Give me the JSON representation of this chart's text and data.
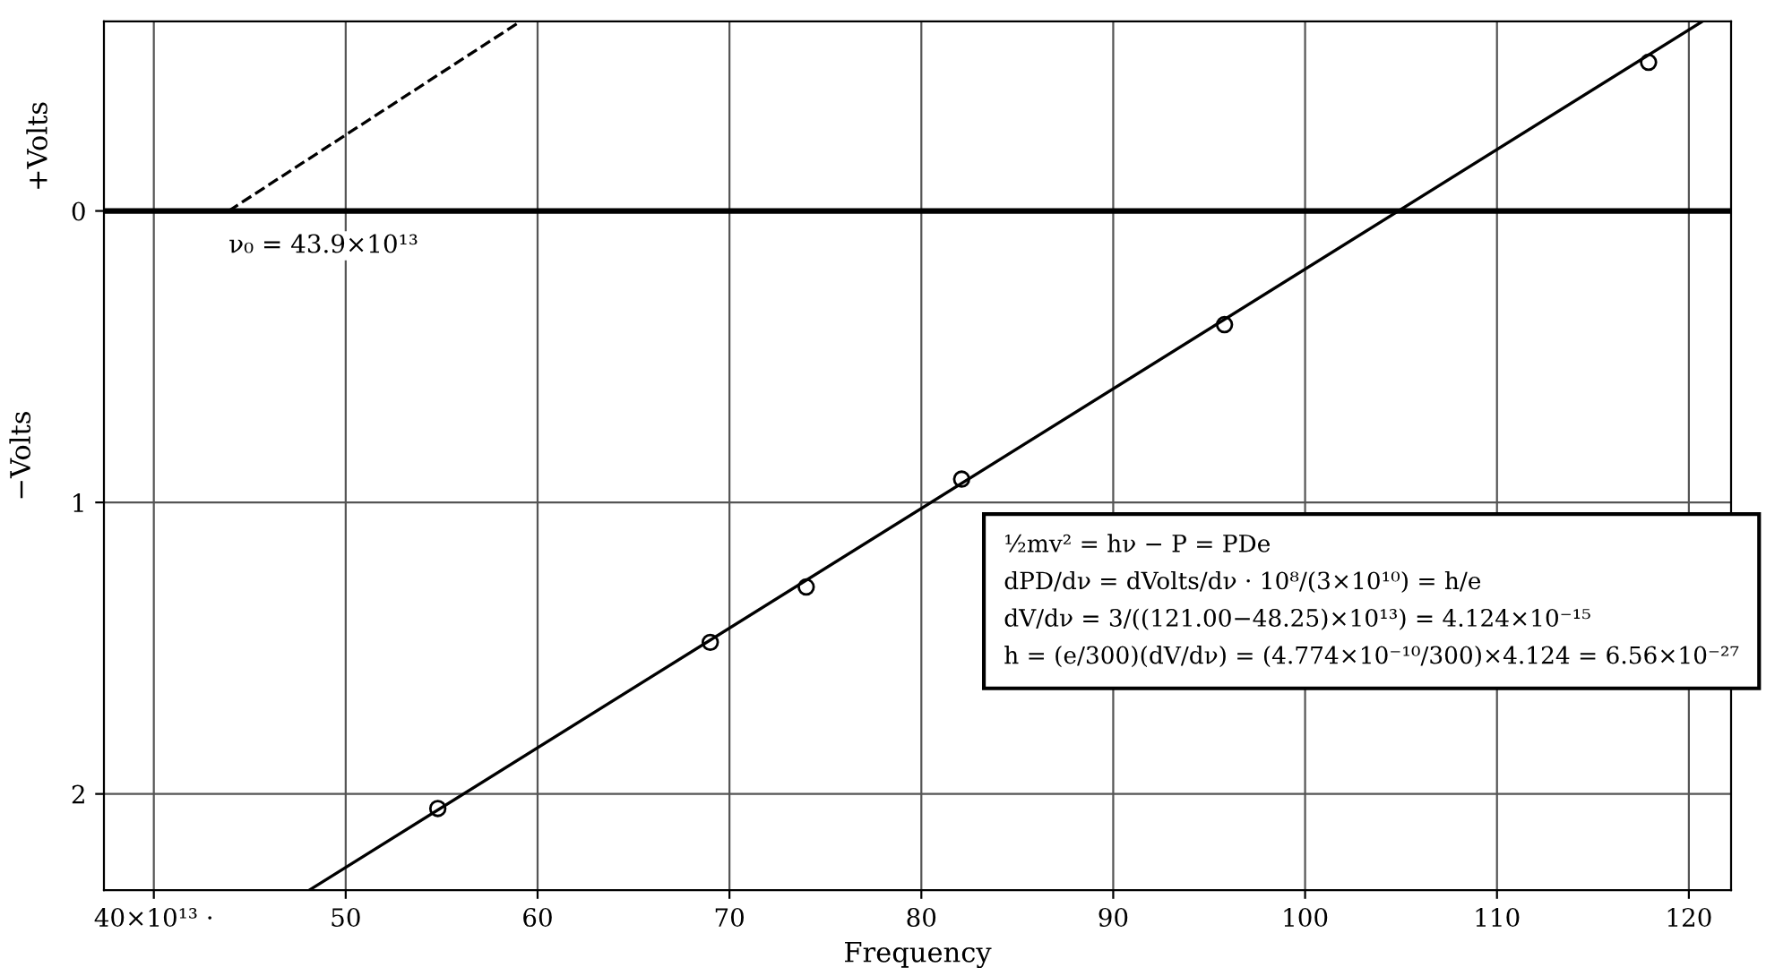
{
  "chart_data": {
    "type": "scatter",
    "xlabel": "Frequency",
    "ylabel": "−Volts",
    "xlim": [
      37.4,
      122.2
    ],
    "ylim": [
      -2.33,
      0.65
    ],
    "xticks": [
      {
        "value": 40,
        "label": "40×10¹³ ·"
      },
      50,
      60,
      70,
      80,
      90,
      {
        "value": 100,
        "label": "100"
      },
      110,
      120
    ],
    "yticks": [
      {
        "value": -2,
        "label": "2"
      },
      {
        "value": -1,
        "label": "1"
      },
      0
    ],
    "grid": true,
    "marker": "circle",
    "series": [
      {
        "color": "#000000",
        "x": [
          54.8,
          69.0,
          74.0,
          82.1,
          95.8,
          117.9
        ],
        "values": [
          -2.05,
          -1.48,
          -1.29,
          -0.92,
          -0.39,
          0.51
        ]
      },
      {
        "type": "line",
        "color": "#000000",
        "marker": "none",
        "line_style": "solid",
        "x": [
          48.1,
          120.7
        ],
        "values": [
          -2.33,
          0.65
        ]
      },
      {
        "type": "line",
        "color": "#000000",
        "marker": "none",
        "line_style": "dashed",
        "x": [
          43.9,
          59.1
        ],
        "values": [
          0,
          0.65
        ]
      }
    ],
    "ref_lines": [
      {
        "axis": "y",
        "value": 0,
        "color": "#000000"
      }
    ],
    "annotations": [
      "+Volts",
      {
        "text": "ν₀ = 43.9×10¹³",
        "x": 43.9,
        "y": 0
      },
      "½mv² = hν − P = PDe\ndPD/dν = dVolts/dν · 10⁸/(3×10¹⁰) = h/e\ndV/dν = 3/((121.00−48.25)×10¹³) = 4.124×10⁻¹⁵\nh = (e/300)(dV/dν) = (4.774×10⁻¹⁰/300)×4.124 = 6.56×10⁻²⁷"
    ]
  }
}
